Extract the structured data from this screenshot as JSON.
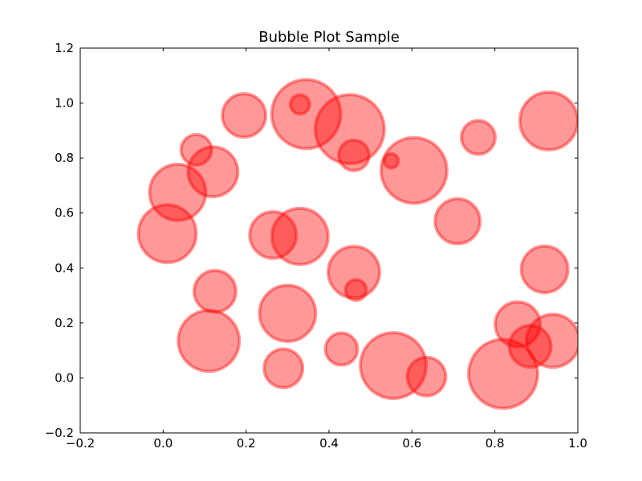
{
  "chart_data": {
    "type": "scatter",
    "title": "Bubble Plot Sample",
    "xlabel": "",
    "ylabel": "",
    "xlim": [
      -0.2,
      1.0
    ],
    "ylim": [
      -0.2,
      1.2
    ],
    "xticks": [
      -0.2,
      0.0,
      0.2,
      0.4,
      0.6,
      0.8,
      1.0
    ],
    "xtick_labels": [
      "−0.2",
      "0.0",
      "0.2",
      "0.4",
      "0.6",
      "0.8",
      "1.0"
    ],
    "yticks": [
      -0.2,
      0.0,
      0.2,
      0.4,
      0.6,
      0.8,
      1.0,
      1.2
    ],
    "ytick_labels": [
      "−0.2",
      "0.0",
      "0.2",
      "0.4",
      "0.6",
      "0.8",
      "1.0",
      "1.2"
    ],
    "grid": false,
    "legend": "none",
    "marker_color": "#ff0000",
    "marker_alpha": 0.4,
    "points": [
      {
        "x": 0.01,
        "y": 0.525,
        "size": 36
      },
      {
        "x": 0.035,
        "y": 0.675,
        "size": 35
      },
      {
        "x": 0.08,
        "y": 0.83,
        "size": 19
      },
      {
        "x": 0.12,
        "y": 0.75,
        "size": 31
      },
      {
        "x": 0.125,
        "y": 0.315,
        "size": 26
      },
      {
        "x": 0.11,
        "y": 0.135,
        "size": 38
      },
      {
        "x": 0.195,
        "y": 0.955,
        "size": 27
      },
      {
        "x": 0.265,
        "y": 0.52,
        "size": 29
      },
      {
        "x": 0.33,
        "y": 0.515,
        "size": 35
      },
      {
        "x": 0.3,
        "y": 0.235,
        "size": 35
      },
      {
        "x": 0.29,
        "y": 0.035,
        "size": 24
      },
      {
        "x": 0.345,
        "y": 0.96,
        "size": 43
      },
      {
        "x": 0.33,
        "y": 0.995,
        "size": 12
      },
      {
        "x": 0.45,
        "y": 0.905,
        "size": 43
      },
      {
        "x": 0.46,
        "y": 0.81,
        "size": 19
      },
      {
        "x": 0.46,
        "y": 0.385,
        "size": 32
      },
      {
        "x": 0.465,
        "y": 0.32,
        "size": 13
      },
      {
        "x": 0.43,
        "y": 0.105,
        "size": 20
      },
      {
        "x": 0.55,
        "y": 0.79,
        "size": 9
      },
      {
        "x": 0.605,
        "y": 0.755,
        "size": 41
      },
      {
        "x": 0.555,
        "y": 0.045,
        "size": 41
      },
      {
        "x": 0.635,
        "y": 0.005,
        "size": 24
      },
      {
        "x": 0.71,
        "y": 0.57,
        "size": 28
      },
      {
        "x": 0.76,
        "y": 0.875,
        "size": 21
      },
      {
        "x": 0.82,
        "y": 0.015,
        "size": 43
      },
      {
        "x": 0.855,
        "y": 0.195,
        "size": 28
      },
      {
        "x": 0.885,
        "y": 0.115,
        "size": 26
      },
      {
        "x": 0.93,
        "y": 0.935,
        "size": 36
      },
      {
        "x": 0.92,
        "y": 0.395,
        "size": 29
      },
      {
        "x": 0.94,
        "y": 0.135,
        "size": 33
      }
    ]
  }
}
